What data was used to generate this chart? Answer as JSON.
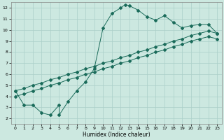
{
  "xlabel": "Humidex (Indice chaleur)",
  "bg_color": "#cce8e0",
  "grid_color": "#aacfc8",
  "line_color": "#1a6b5a",
  "xlim": [
    -0.5,
    23.5
  ],
  "ylim": [
    1.5,
    12.5
  ],
  "xticks": [
    0,
    1,
    2,
    3,
    4,
    5,
    6,
    7,
    8,
    9,
    10,
    11,
    12,
    13,
    14,
    15,
    16,
    17,
    18,
    19,
    20,
    21,
    22,
    23
  ],
  "yticks": [
    2,
    3,
    4,
    5,
    6,
    7,
    8,
    9,
    10,
    11,
    12
  ],
  "main_x": [
    0,
    1,
    2,
    3,
    4,
    5,
    5,
    6,
    7,
    8,
    9,
    10,
    11,
    12,
    12.5,
    13,
    14,
    15,
    16,
    17,
    18,
    19,
    20,
    21,
    22,
    23
  ],
  "main_y": [
    4.5,
    3.2,
    3.2,
    2.5,
    2.3,
    3.2,
    2.3,
    3.5,
    4.5,
    5.3,
    6.5,
    10.2,
    11.5,
    12.0,
    12.3,
    12.2,
    11.8,
    11.2,
    10.9,
    11.3,
    10.7,
    10.2,
    10.4,
    10.5,
    10.5,
    9.7
  ],
  "upper_x": [
    0,
    1,
    2,
    3,
    4,
    5,
    6,
    7,
    8,
    9,
    10,
    11,
    12,
    13,
    14,
    15,
    16,
    17,
    18,
    19,
    20,
    21,
    22,
    23
  ],
  "upper_y": [
    4.5,
    4.7,
    5.0,
    5.2,
    5.5,
    5.7,
    6.0,
    6.2,
    6.5,
    6.7,
    7.0,
    7.2,
    7.5,
    7.7,
    8.0,
    8.2,
    8.5,
    8.7,
    9.0,
    9.2,
    9.5,
    9.7,
    9.9,
    9.7
  ],
  "lower_x": [
    0,
    1,
    2,
    3,
    4,
    5,
    6,
    7,
    8,
    9,
    10,
    11,
    12,
    13,
    14,
    15,
    16,
    17,
    18,
    19,
    20,
    21,
    22,
    23
  ],
  "lower_y": [
    4.0,
    4.2,
    4.5,
    4.7,
    5.0,
    5.2,
    5.5,
    5.7,
    6.0,
    6.2,
    6.5,
    6.7,
    7.0,
    7.2,
    7.5,
    7.7,
    8.0,
    8.2,
    8.5,
    8.7,
    9.0,
    9.2,
    9.4,
    9.2
  ]
}
